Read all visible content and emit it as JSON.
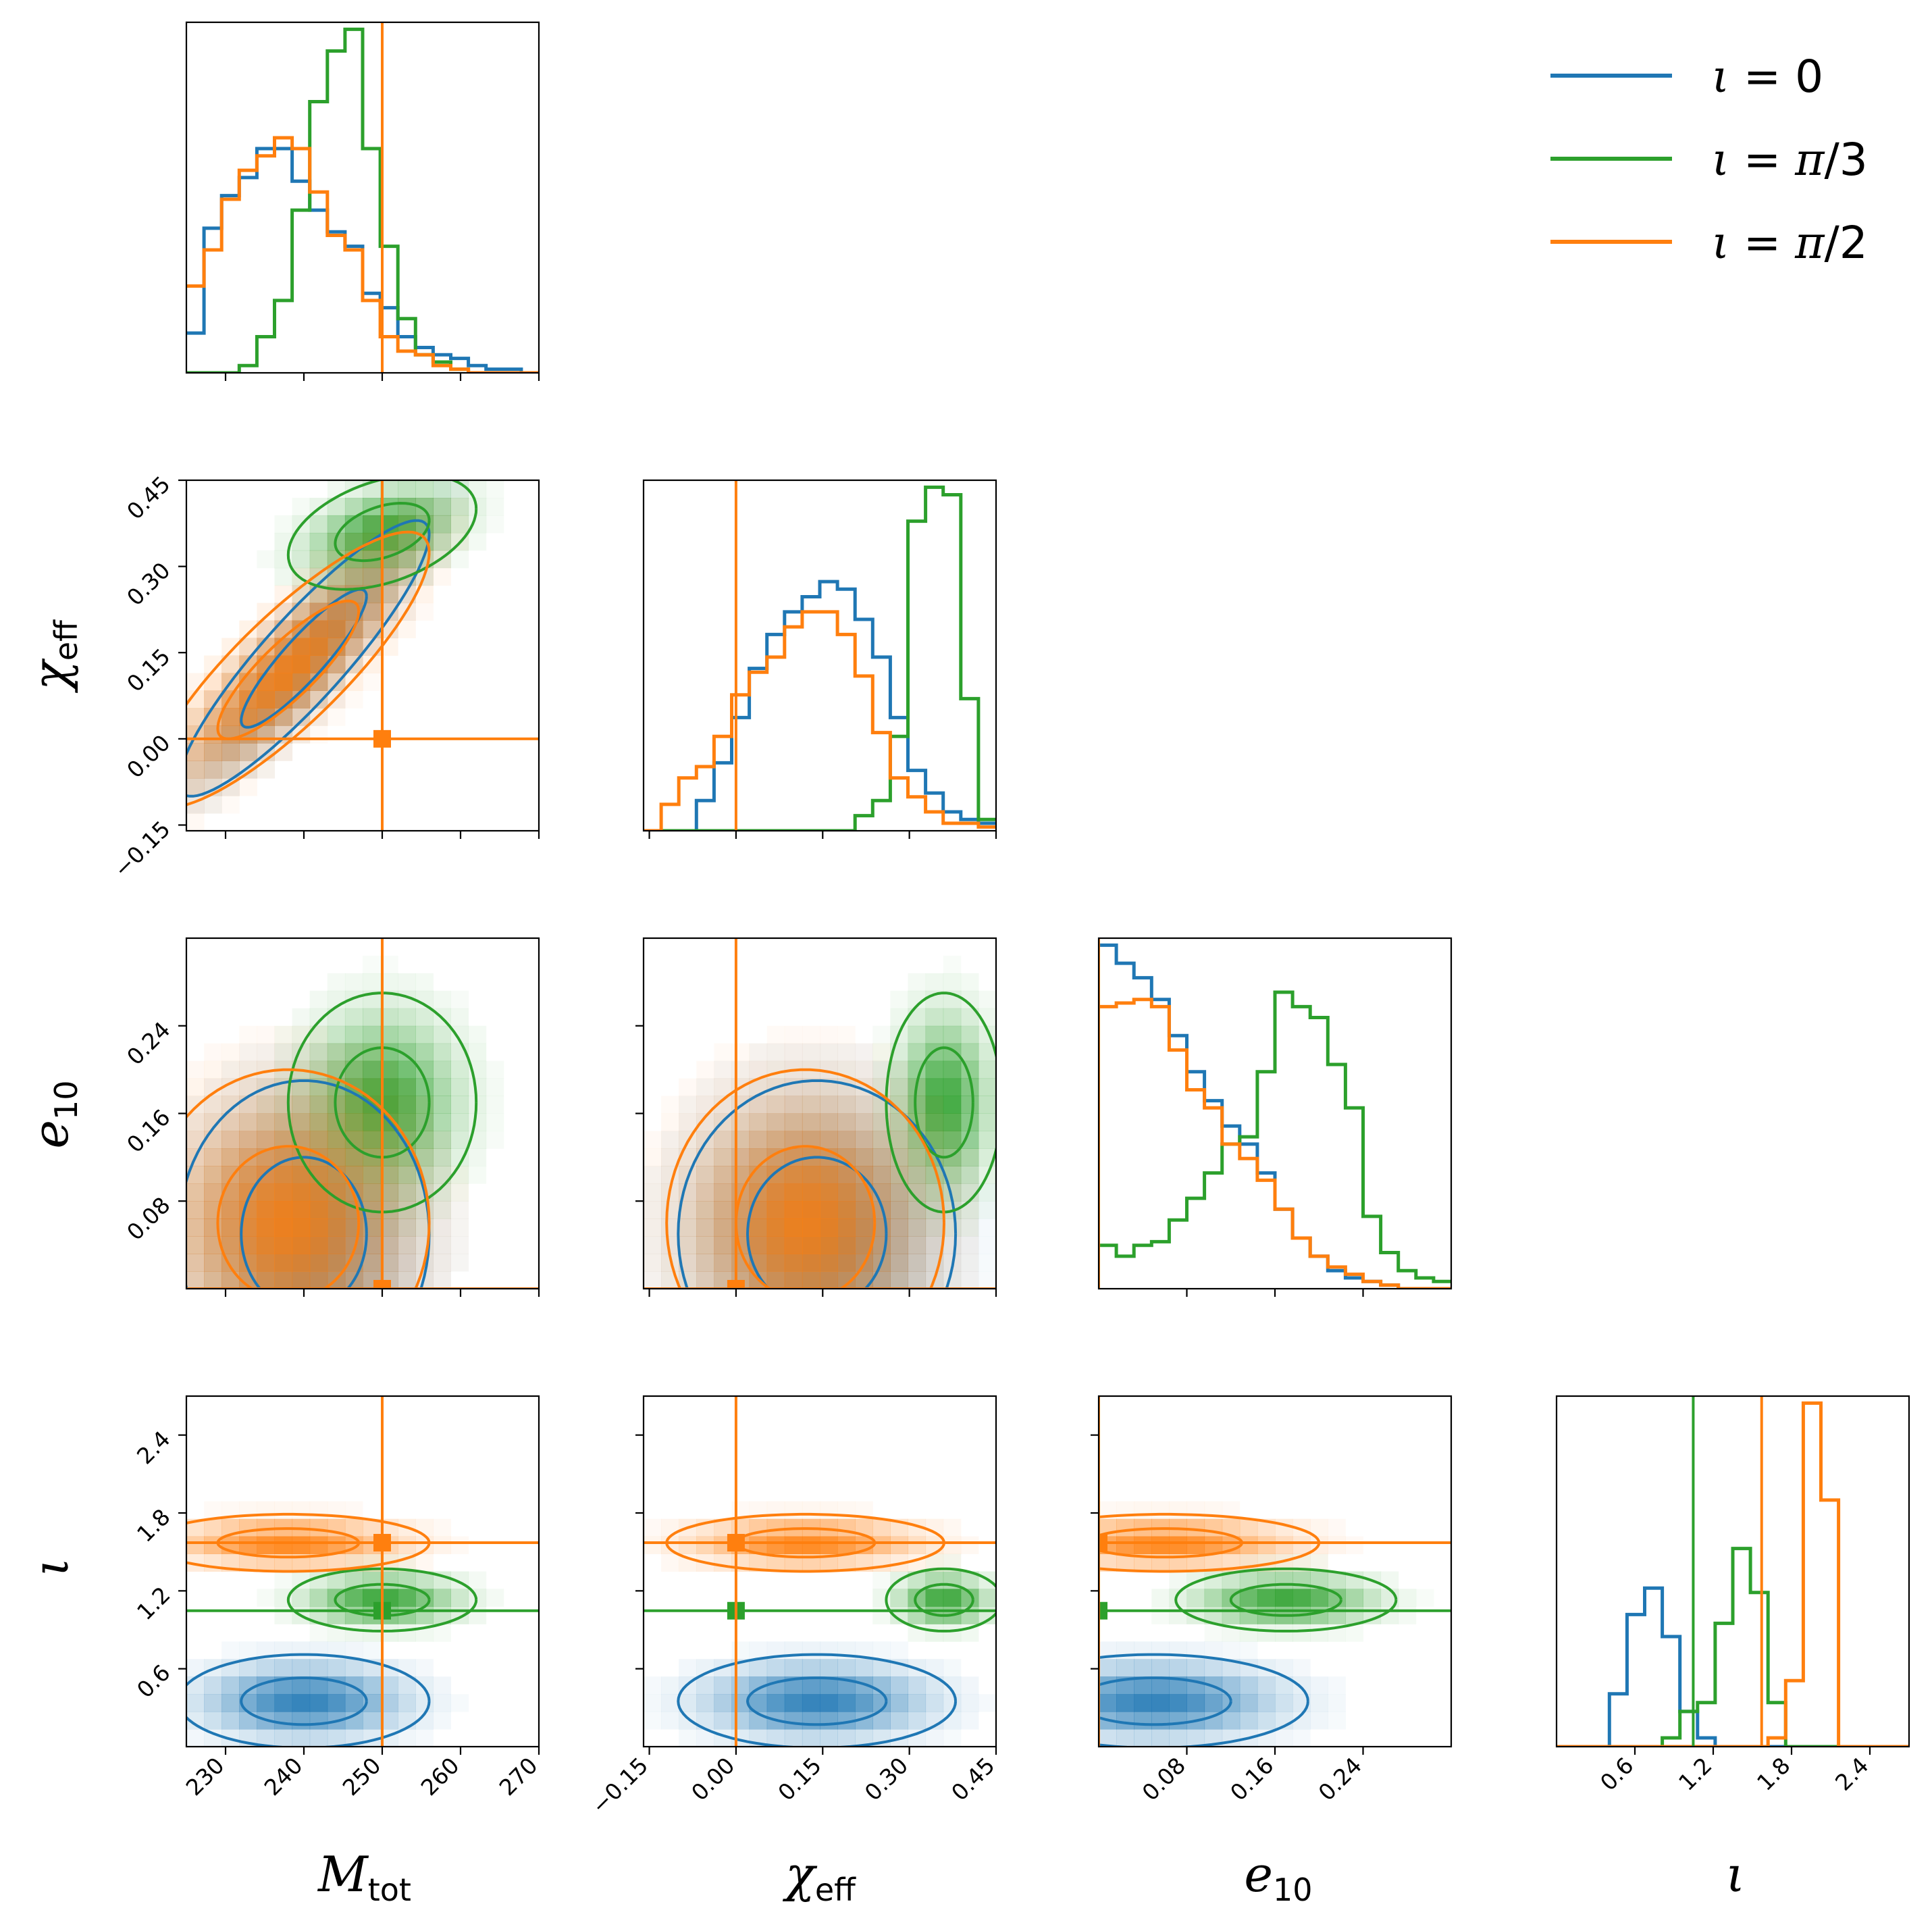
{
  "chart_data": {
    "type": "corner",
    "title": "",
    "parameters": [
      {
        "key": "M",
        "label_main": "M",
        "label_sub": "tot",
        "range": [
          225,
          270
        ],
        "ticks": [
          230,
          240,
          250,
          260,
          270
        ],
        "tick_labels": [
          "230",
          "240",
          "250",
          "260",
          "270"
        ],
        "truth": 250
      },
      {
        "key": "chi",
        "label_main": "χ",
        "label_sub": "eff",
        "range": [
          -0.16,
          0.45
        ],
        "ticks": [
          -0.15,
          0.0,
          0.15,
          0.3,
          0.45
        ],
        "tick_labels": [
          "−0.15",
          "0.00",
          "0.15",
          "0.30",
          "0.45"
        ],
        "truth": 0.0
      },
      {
        "key": "e",
        "label_main": "e",
        "label_sub": "10",
        "range": [
          0.0,
          0.32
        ],
        "ticks": [
          0.08,
          0.16,
          0.24
        ],
        "tick_labels": [
          "0.08",
          "0.16",
          "0.24"
        ],
        "truth": 0.0
      },
      {
        "key": "iota",
        "label_main": "ι",
        "label_sub": "",
        "range": [
          0.0,
          2.7
        ],
        "ticks": [
          0.6,
          1.2,
          1.8,
          2.4
        ],
        "tick_labels": [
          "0.6",
          "1.2",
          "1.8",
          "2.4"
        ],
        "truth": null
      }
    ],
    "legend": {
      "position": "top-right",
      "entries": [
        {
          "name": "blue",
          "text_parts": [
            "ι",
            " = 0"
          ],
          "color": "#1f77b4"
        },
        {
          "name": "green",
          "text_parts": [
            "ι",
            " = ",
            "π",
            "/3"
          ],
          "color": "#2ca02c"
        },
        {
          "name": "orange",
          "text_parts": [
            "ι",
            " = ",
            "π",
            "/2"
          ],
          "color": "#ff7f0e"
        }
      ]
    },
    "series": [
      {
        "name": "iota = 0",
        "color": "#1f77b4",
        "truth": {
          "M": 250,
          "chi": 0.0,
          "e": 0.0,
          "iota": 0.0
        },
        "mean": {
          "M": 240,
          "chi": 0.14,
          "e": 0.05,
          "iota": 0.35
        },
        "sd": {
          "M": 8,
          "chi": 0.12,
          "e": 0.07,
          "iota": 0.18
        },
        "corr": {
          "M_chi": 0.9,
          "M_e": 0.0,
          "chi_e": 0.0,
          "M_iota": 0.0,
          "chi_iota": 0.0,
          "e_iota": 0.0
        },
        "hist": {
          "M": [
            0.11,
            0.4,
            0.49,
            0.54,
            0.62,
            0.62,
            0.53,
            0.45,
            0.39,
            0.35,
            0.22,
            0.18,
            0.1,
            0.07,
            0.05,
            0.04,
            0.02,
            0.01,
            0.01,
            0.0
          ],
          "chi": [
            0.0,
            0.0,
            0.0,
            0.08,
            0.18,
            0.3,
            0.43,
            0.52,
            0.58,
            0.62,
            0.66,
            0.64,
            0.56,
            0.46,
            0.3,
            0.16,
            0.1,
            0.05,
            0.03,
            0.02
          ],
          "e": [
            0.95,
            0.9,
            0.86,
            0.8,
            0.7,
            0.6,
            0.52,
            0.45,
            0.4,
            0.32,
            0.22,
            0.14,
            0.09,
            0.05,
            0.03,
            0.02,
            0.01,
            0.0,
            0.0,
            0.0
          ],
          "iota": [
            0.0,
            0.0,
            0.0,
            0.12,
            0.3,
            0.36,
            0.25,
            0.08,
            0.02,
            0.0,
            0.0,
            0.0,
            0.0,
            0.0,
            0.0,
            0.0,
            0.0,
            0.0,
            0.0,
            0.0
          ]
        }
      },
      {
        "name": "iota = pi/3",
        "color": "#2ca02c",
        "truth": {
          "M": 250,
          "chi": 0.0,
          "e": 0.0,
          "iota": 1.047
        },
        "mean": {
          "M": 250,
          "chi": 0.36,
          "e": 0.17,
          "iota": 1.13
        },
        "sd": {
          "M": 6,
          "chi": 0.05,
          "e": 0.05,
          "iota": 0.12
        },
        "corr": {
          "M_chi": 0.4,
          "M_e": 0.0,
          "chi_e": 0.0,
          "M_iota": 0.0,
          "chi_iota": 0.0,
          "e_iota": 0.0
        },
        "hist": {
          "M": [
            0.0,
            0.0,
            0.0,
            0.02,
            0.1,
            0.2,
            0.45,
            0.75,
            0.89,
            0.95,
            0.62,
            0.35,
            0.15,
            0.05,
            0.03,
            0.01,
            0.0,
            0.0,
            0.0,
            0.0
          ],
          "chi": [
            0.0,
            0.0,
            0.0,
            0.0,
            0.0,
            0.0,
            0.0,
            0.0,
            0.0,
            0.0,
            0.0,
            0.0,
            0.04,
            0.08,
            0.25,
            0.82,
            0.91,
            0.89,
            0.35,
            0.03
          ],
          "e": [
            0.12,
            0.09,
            0.12,
            0.13,
            0.19,
            0.25,
            0.32,
            0.4,
            0.42,
            0.6,
            0.82,
            0.78,
            0.75,
            0.62,
            0.5,
            0.2,
            0.1,
            0.05,
            0.03,
            0.02
          ],
          "iota": [
            0.0,
            0.0,
            0.0,
            0.0,
            0.0,
            0.0,
            0.02,
            0.08,
            0.1,
            0.28,
            0.45,
            0.35,
            0.1,
            0.0,
            0.0,
            0.0,
            0.0,
            0.0,
            0.0,
            0.0
          ]
        }
      },
      {
        "name": "iota = pi/2",
        "color": "#ff7f0e",
        "truth": {
          "M": 250,
          "chi": 0.0,
          "e": 0.0,
          "iota": 1.571
        },
        "mean": {
          "M": 238,
          "chi": 0.12,
          "e": 0.06,
          "iota": 1.57
        },
        "sd": {
          "M": 9,
          "chi": 0.12,
          "e": 0.07,
          "iota": 0.11
        },
        "corr": {
          "M_chi": 0.85,
          "M_e": 0.0,
          "chi_e": 0.0,
          "M_iota": 0.0,
          "chi_iota": 0.0,
          "e_iota": 0.0
        },
        "hist": {
          "M": [
            0.24,
            0.34,
            0.48,
            0.56,
            0.6,
            0.65,
            0.62,
            0.5,
            0.38,
            0.34,
            0.2,
            0.1,
            0.06,
            0.05,
            0.02,
            0.01,
            0.0,
            0.0,
            0.0,
            0.0
          ],
          "chi": [
            0.0,
            0.07,
            0.14,
            0.17,
            0.25,
            0.36,
            0.42,
            0.46,
            0.54,
            0.58,
            0.58,
            0.52,
            0.41,
            0.26,
            0.14,
            0.09,
            0.05,
            0.02,
            0.02,
            0.01
          ],
          "e": [
            0.78,
            0.79,
            0.8,
            0.78,
            0.66,
            0.55,
            0.5,
            0.4,
            0.36,
            0.3,
            0.22,
            0.14,
            0.09,
            0.06,
            0.04,
            0.02,
            0.01,
            0.0,
            0.0,
            0.0
          ],
          "iota": [
            0.0,
            0.0,
            0.0,
            0.0,
            0.0,
            0.0,
            0.0,
            0.0,
            0.0,
            0.0,
            0.0,
            0.0,
            0.02,
            0.15,
            0.78,
            0.56,
            0.0,
            0.0,
            0.0,
            0.0
          ]
        }
      }
    ],
    "contour_levels": "1-sigma and 2-sigma (inner and outer)",
    "grid": false
  }
}
